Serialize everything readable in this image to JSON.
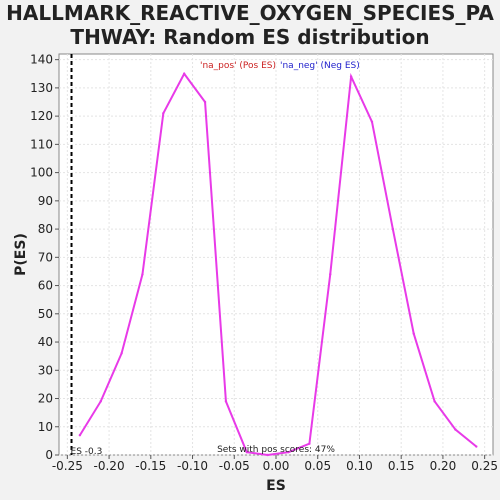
{
  "chart_data": {
    "type": "line",
    "title_line1": "HALLMARK_REACTIVE_OXYGEN_SPECIES_PA",
    "title_line2": "THWAY: Random ES distribution",
    "xlabel": "ES",
    "ylabel": "P(ES)",
    "xlim": [
      -0.26,
      0.26
    ],
    "ylim": [
      0,
      142
    ],
    "xticks": [
      "-0.25",
      "-0.20",
      "-0.15",
      "-0.10",
      "-0.05",
      "0.00",
      "0.05",
      "0.10",
      "0.15",
      "0.20",
      "0.25"
    ],
    "yticks": [
      "0",
      "10",
      "20",
      "30",
      "40",
      "50",
      "60",
      "70",
      "80",
      "90",
      "100",
      "110",
      "120",
      "130",
      "140"
    ],
    "legend": [
      {
        "label": "'na_pos' (Pos ES)",
        "color": "#cc2222"
      },
      {
        "label": "'na_neg' (Neg ES)",
        "color": "#2222cc"
      }
    ],
    "series_color": "#e83ae8",
    "series": [
      {
        "x": [
          -0.235,
          -0.21,
          -0.185,
          -0.16,
          -0.135,
          -0.11,
          -0.085,
          -0.06,
          -0.035,
          -0.01,
          0.015,
          0.04,
          0.065,
          0.09,
          0.115,
          0.14,
          0.165,
          0.19,
          0.215,
          0.24
        ],
        "y": [
          7,
          19,
          36,
          64,
          121,
          135,
          125,
          19,
          1,
          0,
          1,
          4,
          64,
          134,
          118,
          80,
          43,
          19,
          9,
          3
        ]
      }
    ],
    "es_marker": {
      "x": -0.245,
      "label": "ES -0.3"
    },
    "annotation": "Sets with pos scores: 47%",
    "grid": true
  }
}
